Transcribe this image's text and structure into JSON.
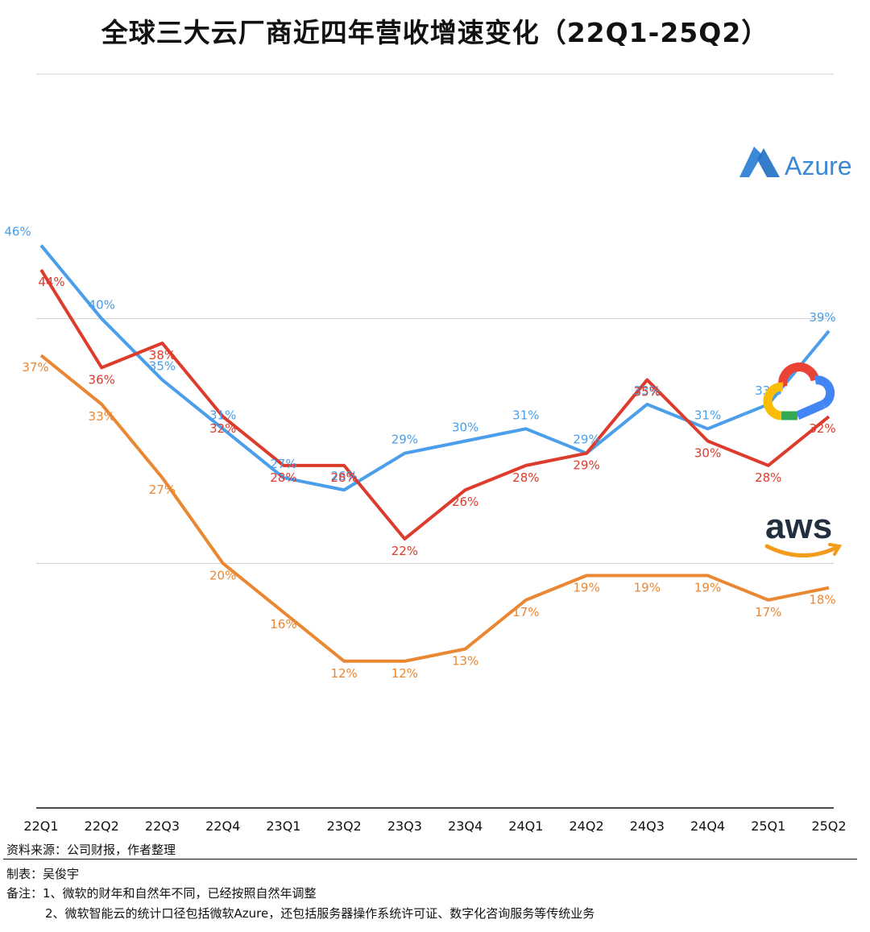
{
  "title": "全球三大云厂商近四年营收增速变化（22Q1-25Q2）",
  "chart_data": {
    "type": "line",
    "title": "全球三大云厂商近四年营收增速变化（22Q1-25Q2）",
    "categories": [
      "22Q1",
      "22Q2",
      "22Q3",
      "22Q4",
      "23Q1",
      "23Q2",
      "23Q3",
      "23Q4",
      "24Q1",
      "24Q2",
      "24Q3",
      "24Q4",
      "25Q1",
      "25Q2"
    ],
    "ylim": [
      0,
      60
    ],
    "grid": true,
    "series": [
      {
        "name": "Azure",
        "color": "#4a9eea",
        "values": [
          46,
          40,
          35,
          31,
          27,
          26,
          29,
          30,
          31,
          29,
          33,
          31,
          33,
          39
        ],
        "labels": [
          "46%",
          "40%",
          "35%",
          "31%",
          "27%",
          "26%",
          "29%",
          "30%",
          "31%",
          "29%",
          "33%",
          "31%",
          "33%",
          "39%"
        ]
      },
      {
        "name": "Google Cloud",
        "color": "#dd3b2c",
        "values": [
          44,
          36,
          38,
          32,
          28,
          28,
          22,
          26,
          28,
          29,
          35,
          30,
          28,
          32
        ],
        "labels": [
          "44%",
          "36%",
          "38%",
          "32%",
          "28%",
          "28%",
          "22%",
          "26%",
          "28%",
          "29%",
          "35%",
          "30%",
          "28%",
          "32%"
        ]
      },
      {
        "name": "AWS",
        "color": "#ea8732",
        "values": [
          37,
          33,
          27,
          20,
          16,
          12,
          12,
          13,
          17,
          19,
          19,
          19,
          17,
          18
        ],
        "labels": [
          "37%",
          "33%",
          "27%",
          "20%",
          "16%",
          "12%",
          "12%",
          "13%",
          "17%",
          "19%",
          "19%",
          "19%",
          "17%",
          "18%"
        ]
      }
    ]
  },
  "logos": {
    "azure": {
      "text": "Azure",
      "color": "#3a88d6"
    },
    "aws": {
      "text": "aws",
      "color": "#232f3e",
      "smile_color": "#f29b1d"
    },
    "google_cloud": {
      "colors": [
        "#ea4335",
        "#fbbc05",
        "#34a853",
        "#4285f4"
      ]
    }
  },
  "notes": {
    "source": "资料来源：公司财报，作者整理",
    "maker": "制表：吴俊宇",
    "remark1": "备注：1、微软的财年和自然年不同，已经按照自然年调整",
    "remark2": "2、微软智能云的统计口径包括微软Azure，还包括服务器操作系统许可证、数字化咨询服务等传统业务"
  }
}
